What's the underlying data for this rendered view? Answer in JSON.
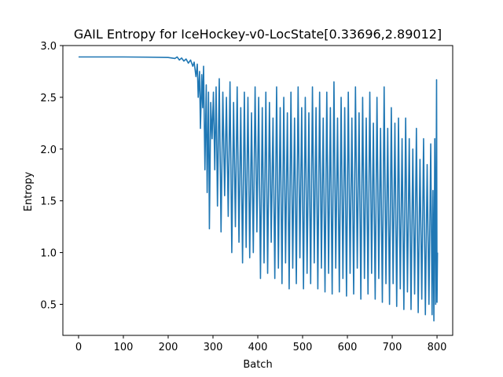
{
  "chart_data": {
    "type": "line",
    "title": "GAIL Entropy for IceHockey-v0-LocState[0.33696,2.89012]",
    "xlabel": "Batch",
    "ylabel": "Entropy",
    "xlim": [
      -35,
      835
    ],
    "ylim": [
      0.2,
      3.0
    ],
    "xticks": [
      0,
      100,
      200,
      300,
      400,
      500,
      600,
      700,
      800
    ],
    "yticks": [
      0.5,
      1.0,
      1.5,
      2.0,
      2.5,
      3.0
    ],
    "ytick_labels": [
      "0.5",
      "1.0",
      "1.5",
      "2.0",
      "2.5",
      "3.0"
    ],
    "grid": false,
    "line_color": "#1f77b4",
    "series": [
      {
        "values": [
          [
            0,
            2.89
          ],
          [
            50,
            2.89
          ],
          [
            100,
            2.89
          ],
          [
            150,
            2.888
          ],
          [
            200,
            2.885
          ],
          [
            215,
            2.875
          ],
          [
            220,
            2.89
          ],
          [
            225,
            2.86
          ],
          [
            230,
            2.88
          ],
          [
            235,
            2.85
          ],
          [
            240,
            2.87
          ],
          [
            245,
            2.83
          ],
          [
            250,
            2.86
          ],
          [
            255,
            2.8
          ],
          [
            258,
            2.84
          ],
          [
            262,
            2.7
          ],
          [
            265,
            2.82
          ],
          [
            267,
            2.5
          ],
          [
            270,
            2.75
          ],
          [
            272,
            2.2
          ],
          [
            275,
            2.72
          ],
          [
            277,
            2.4
          ],
          [
            279,
            2.8
          ],
          [
            282,
            1.8
          ],
          [
            285,
            2.62
          ],
          [
            287,
            1.58
          ],
          [
            290,
            2.55
          ],
          [
            292,
            1.23
          ],
          [
            295,
            2.45
          ],
          [
            298,
            2.1
          ],
          [
            301,
            2.55
          ],
          [
            304,
            1.8
          ],
          [
            307,
            2.6
          ],
          [
            310,
            1.45
          ],
          [
            314,
            2.68
          ],
          [
            318,
            1.2
          ],
          [
            322,
            2.55
          ],
          [
            326,
            1.55
          ],
          [
            330,
            2.5
          ],
          [
            334,
            1.35
          ],
          [
            338,
            2.65
          ],
          [
            342,
            1.0
          ],
          [
            346,
            2.45
          ],
          [
            350,
            1.25
          ],
          [
            354,
            2.6
          ],
          [
            358,
            1.1
          ],
          [
            362,
            2.4
          ],
          [
            366,
            0.9
          ],
          [
            370,
            2.55
          ],
          [
            374,
            1.05
          ],
          [
            378,
            2.5
          ],
          [
            382,
            0.95
          ],
          [
            386,
            2.35
          ],
          [
            390,
            1.0
          ],
          [
            394,
            2.6
          ],
          [
            398,
            1.2
          ],
          [
            402,
            2.5
          ],
          [
            406,
            0.75
          ],
          [
            410,
            2.4
          ],
          [
            414,
            0.9
          ],
          [
            418,
            2.55
          ],
          [
            422,
            0.8
          ],
          [
            426,
            2.45
          ],
          [
            430,
            1.1
          ],
          [
            434,
            2.3
          ],
          [
            438,
            0.75
          ],
          [
            442,
            2.6
          ],
          [
            446,
            0.85
          ],
          [
            450,
            2.4
          ],
          [
            454,
            0.7
          ],
          [
            458,
            2.5
          ],
          [
            462,
            0.9
          ],
          [
            466,
            2.35
          ],
          [
            470,
            0.65
          ],
          [
            474,
            2.55
          ],
          [
            478,
            0.85
          ],
          [
            482,
            2.3
          ],
          [
            486,
            0.7
          ],
          [
            490,
            2.6
          ],
          [
            494,
            0.95
          ],
          [
            498,
            2.4
          ],
          [
            502,
            0.65
          ],
          [
            506,
            2.5
          ],
          [
            510,
            0.8
          ],
          [
            514,
            2.35
          ],
          [
            518,
            0.7
          ],
          [
            522,
            2.6
          ],
          [
            526,
            0.9
          ],
          [
            530,
            2.4
          ],
          [
            534,
            0.65
          ],
          [
            538,
            2.55
          ],
          [
            542,
            0.85
          ],
          [
            546,
            2.3
          ],
          [
            550,
            0.62
          ],
          [
            554,
            2.55
          ],
          [
            558,
            0.8
          ],
          [
            562,
            2.4
          ],
          [
            566,
            0.6
          ],
          [
            570,
            2.65
          ],
          [
            574,
            0.85
          ],
          [
            578,
            2.3
          ],
          [
            582,
            0.62
          ],
          [
            586,
            2.5
          ],
          [
            590,
            0.75
          ],
          [
            594,
            2.4
          ],
          [
            598,
            0.58
          ],
          [
            602,
            2.55
          ],
          [
            606,
            0.8
          ],
          [
            610,
            2.3
          ],
          [
            614,
            0.6
          ],
          [
            618,
            2.6
          ],
          [
            622,
            0.85
          ],
          [
            626,
            2.35
          ],
          [
            630,
            0.55
          ],
          [
            634,
            2.5
          ],
          [
            638,
            0.75
          ],
          [
            642,
            2.3
          ],
          [
            646,
            0.6
          ],
          [
            650,
            2.55
          ],
          [
            654,
            0.8
          ],
          [
            658,
            2.25
          ],
          [
            662,
            0.55
          ],
          [
            666,
            2.5
          ],
          [
            670,
            0.75
          ],
          [
            674,
            2.2
          ],
          [
            678,
            0.52
          ],
          [
            682,
            2.6
          ],
          [
            686,
            0.7
          ],
          [
            690,
            2.2
          ],
          [
            694,
            0.5
          ],
          [
            698,
            2.4
          ],
          [
            702,
            0.7
          ],
          [
            706,
            2.25
          ],
          [
            710,
            0.48
          ],
          [
            714,
            2.3
          ],
          [
            718,
            0.65
          ],
          [
            722,
            2.1
          ],
          [
            726,
            0.45
          ],
          [
            730,
            2.3
          ],
          [
            734,
            0.62
          ],
          [
            738,
            2.1
          ],
          [
            742,
            0.45
          ],
          [
            746,
            2.0
          ],
          [
            750,
            0.6
          ],
          [
            754,
            2.2
          ],
          [
            758,
            0.42
          ],
          [
            762,
            1.9
          ],
          [
            766,
            0.55
          ],
          [
            770,
            2.1
          ],
          [
            774,
            0.4
          ],
          [
            778,
            1.85
          ],
          [
            782,
            0.5
          ],
          [
            786,
            2.05
          ],
          [
            789,
            0.4
          ],
          [
            791,
            1.6
          ],
          [
            793,
            0.34
          ],
          [
            795,
            2.1
          ],
          [
            797,
            0.5
          ],
          [
            799,
            2.67
          ],
          [
            800,
            0.52
          ],
          [
            801,
            1.0
          ]
        ]
      }
    ]
  }
}
